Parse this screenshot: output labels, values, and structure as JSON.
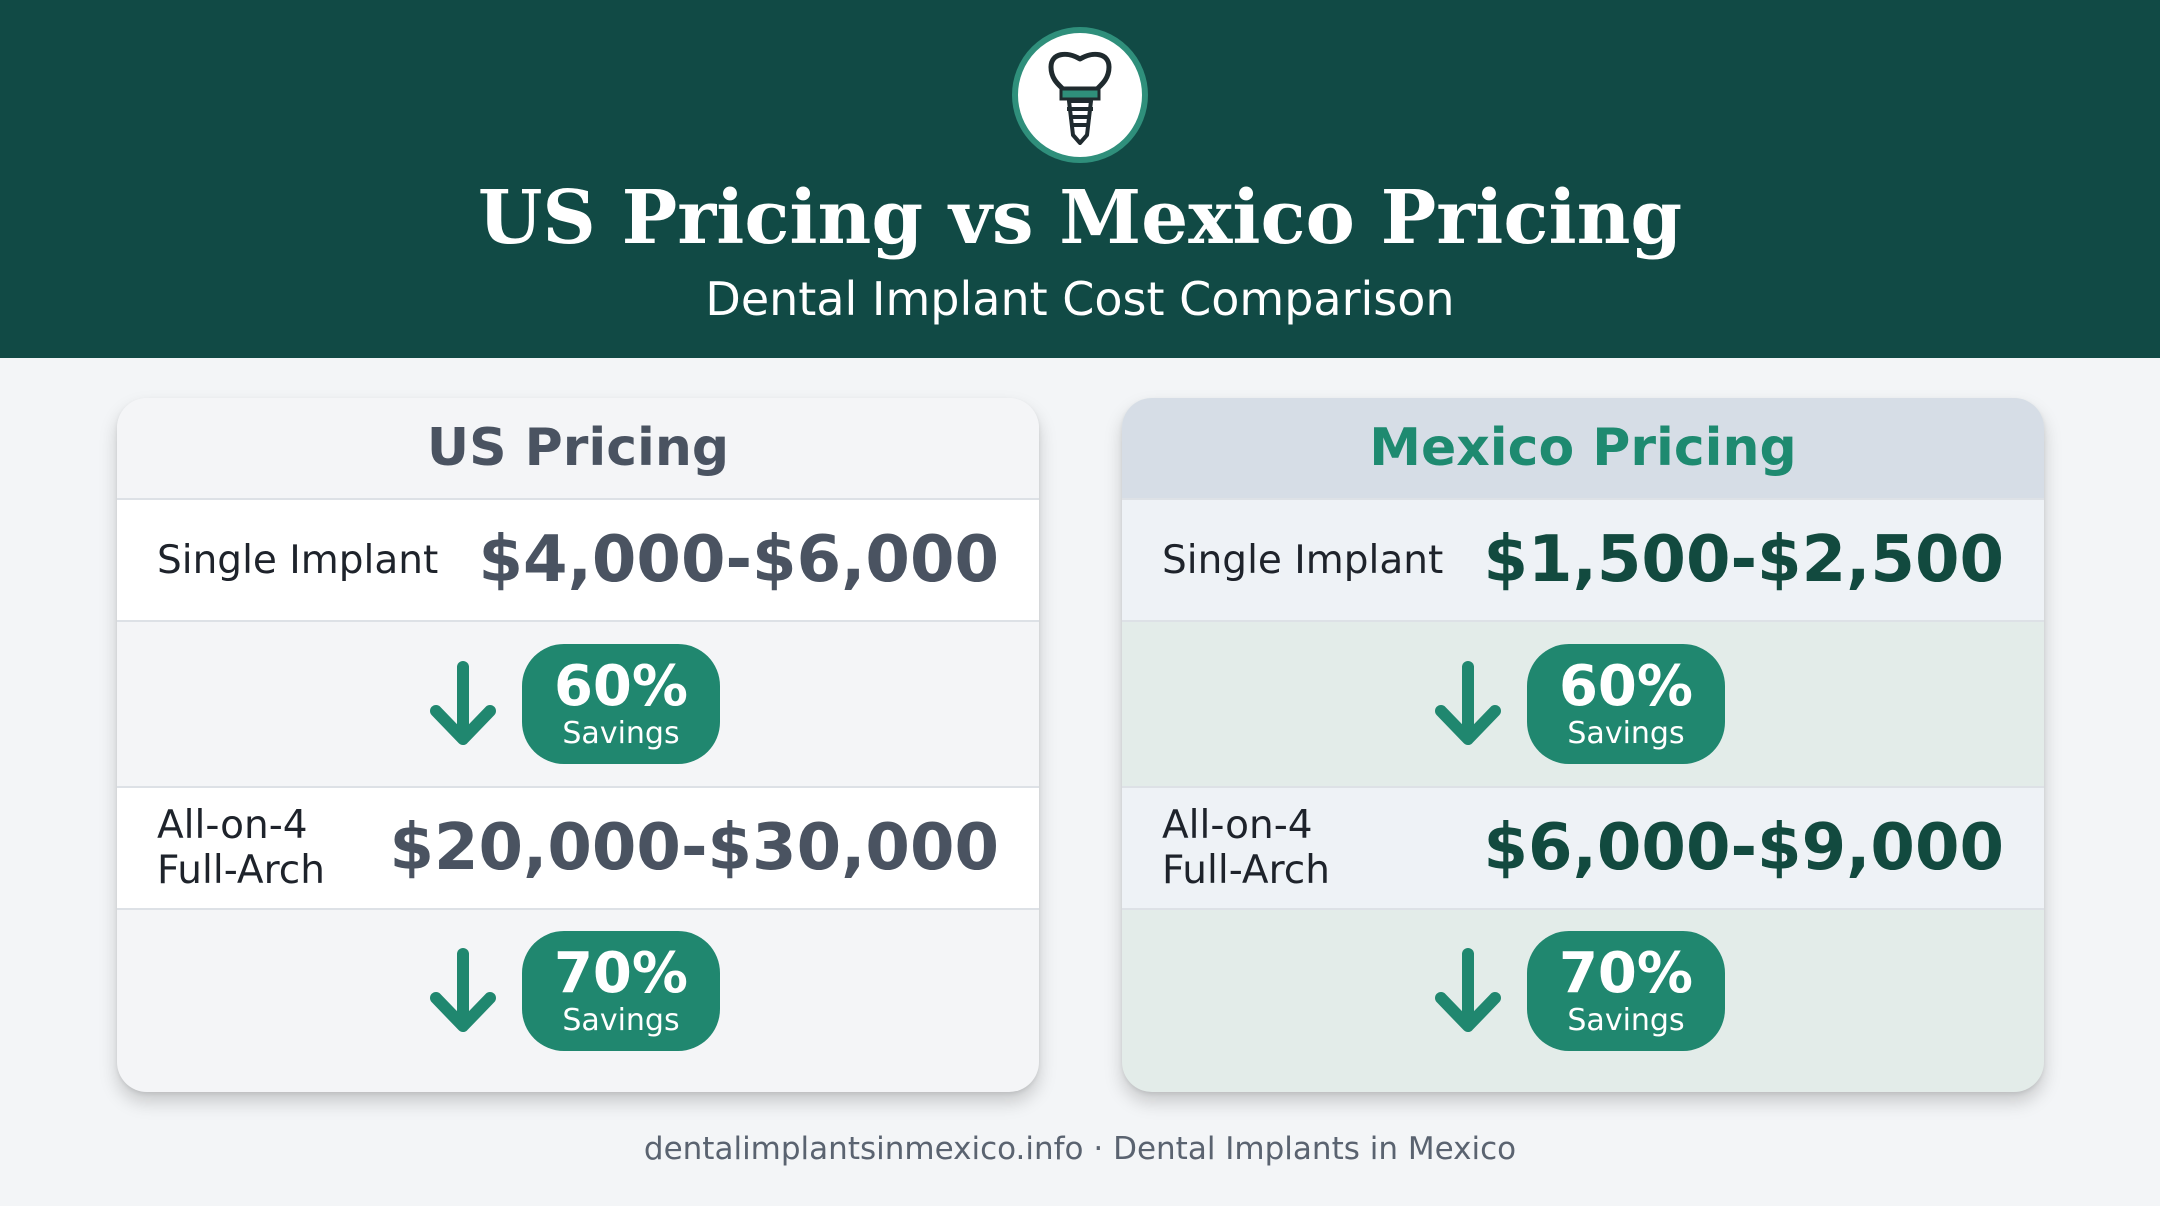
{
  "header": {
    "logo_icon": "dental-implant-icon",
    "title": "US Pricing vs Mexico Pricing",
    "subtitle": "Dental Implant Cost Comparison",
    "background_color": "#114a45"
  },
  "cards": {
    "us": {
      "title": "US Pricing",
      "single_label": "Single Implant",
      "single_price": "$4,000-$6,000",
      "arch_label_line1": "All-on-4",
      "arch_label_line2": "Full-Arch",
      "arch_price": "$20,000-$30,000",
      "savings": [
        {
          "percent": "60%",
          "label": "Savings"
        },
        {
          "percent": "70%",
          "label": "Savings"
        }
      ]
    },
    "mexico": {
      "title": "Mexico Pricing",
      "single_label": "Single Implant",
      "single_price": "$1,500-$2,500",
      "arch_label_line1": "All-on-4",
      "arch_label_line2": "Full-Arch",
      "arch_price": "$6,000-$9,000",
      "savings": [
        {
          "percent": "60%",
          "label": "Savings"
        },
        {
          "percent": "70%",
          "label": "Savings"
        }
      ]
    }
  },
  "colors": {
    "accent_green": "#20876f",
    "mexico_title": "#1e8a70"
  },
  "footer": {
    "text": "dentalimplantsinmexico.info · Dental Implants in Mexico"
  }
}
